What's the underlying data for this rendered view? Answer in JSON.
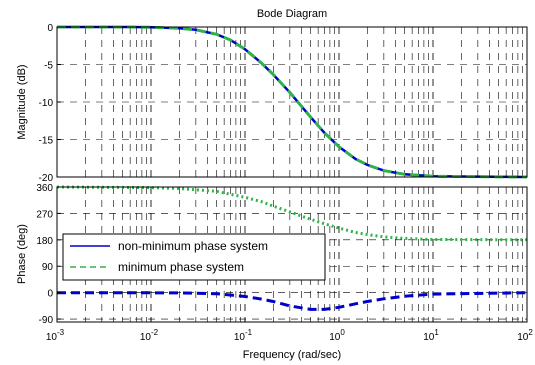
{
  "chart_data": [
    {
      "type": "line",
      "title": "Bode Diagram",
      "xlabel": "",
      "ylabel": "Magnitude (dB)",
      "xscale": "log",
      "xlim": [
        0.001,
        100
      ],
      "ylim": [
        -20,
        0
      ],
      "yticks": [
        0,
        -5,
        -10,
        -15,
        -20
      ],
      "grid": true,
      "series": [
        {
          "name": "non-minimum phase system",
          "color": "#0000cc",
          "style": "solid",
          "x": [
            0.001,
            0.005,
            0.01,
            0.02,
            0.03,
            0.05,
            0.07,
            0.1,
            0.15,
            0.2,
            0.3,
            0.5,
            0.7,
            1,
            1.5,
            2,
            3,
            5,
            10,
            100
          ],
          "y": [
            0,
            0,
            -0.04,
            -0.17,
            -0.37,
            -0.97,
            -1.73,
            -2.96,
            -4.82,
            -6.35,
            -8.72,
            -12.02,
            -14.1,
            -15.98,
            -17.6,
            -18.39,
            -19.15,
            -19.64,
            -19.9,
            -20.0
          ]
        },
        {
          "name": "minimum phase system",
          "color": "#2db34a",
          "style": "dashed",
          "x": [
            0.001,
            0.005,
            0.01,
            0.02,
            0.03,
            0.05,
            0.07,
            0.1,
            0.15,
            0.2,
            0.3,
            0.5,
            0.7,
            1,
            1.5,
            2,
            3,
            5,
            10,
            100
          ],
          "y": [
            0,
            0,
            -0.04,
            -0.17,
            -0.37,
            -0.97,
            -1.73,
            -2.96,
            -4.82,
            -6.35,
            -8.72,
            -12.02,
            -14.1,
            -15.98,
            -17.6,
            -18.39,
            -19.15,
            -19.64,
            -19.9,
            -20.0
          ]
        }
      ]
    },
    {
      "type": "line",
      "xlabel": "Frequency  (rad/sec)",
      "ylabel": "Phase (deg)",
      "xscale": "log",
      "xlim": [
        0.001,
        100
      ],
      "xticks": [
        "10^-3",
        "10^-2",
        "10^-1",
        "10^0",
        "10^1",
        "10^2"
      ],
      "ylim": [
        -100,
        360
      ],
      "yticks": [
        360,
        270,
        180,
        90,
        0,
        -90
      ],
      "grid": true,
      "legend": "center-left",
      "series": [
        {
          "name": "non-minimum phase system",
          "color": "#0000cc",
          "style": "dashed",
          "x": [
            0.001,
            0.01,
            0.02,
            0.05,
            0.1,
            0.15,
            0.2,
            0.3,
            0.5,
            0.7,
            1,
            1.5,
            2,
            3,
            5,
            10,
            100
          ],
          "y": [
            0,
            -0.5,
            -1,
            -3.5,
            -13,
            -22,
            -30,
            -45,
            -57,
            -57,
            -50,
            -38,
            -30,
            -21,
            -12,
            -5,
            0
          ]
        },
        {
          "name": "minimum phase system",
          "color": "#2db34a",
          "style": "dotted",
          "x": [
            0.001,
            0.01,
            0.02,
            0.05,
            0.1,
            0.15,
            0.2,
            0.3,
            0.5,
            0.7,
            1,
            1.5,
            2,
            3,
            5,
            10,
            100
          ],
          "y": [
            360,
            358,
            355,
            345,
            325,
            310,
            295,
            275,
            250,
            235,
            220,
            205,
            198,
            190,
            185,
            181,
            180
          ]
        }
      ]
    }
  ]
}
